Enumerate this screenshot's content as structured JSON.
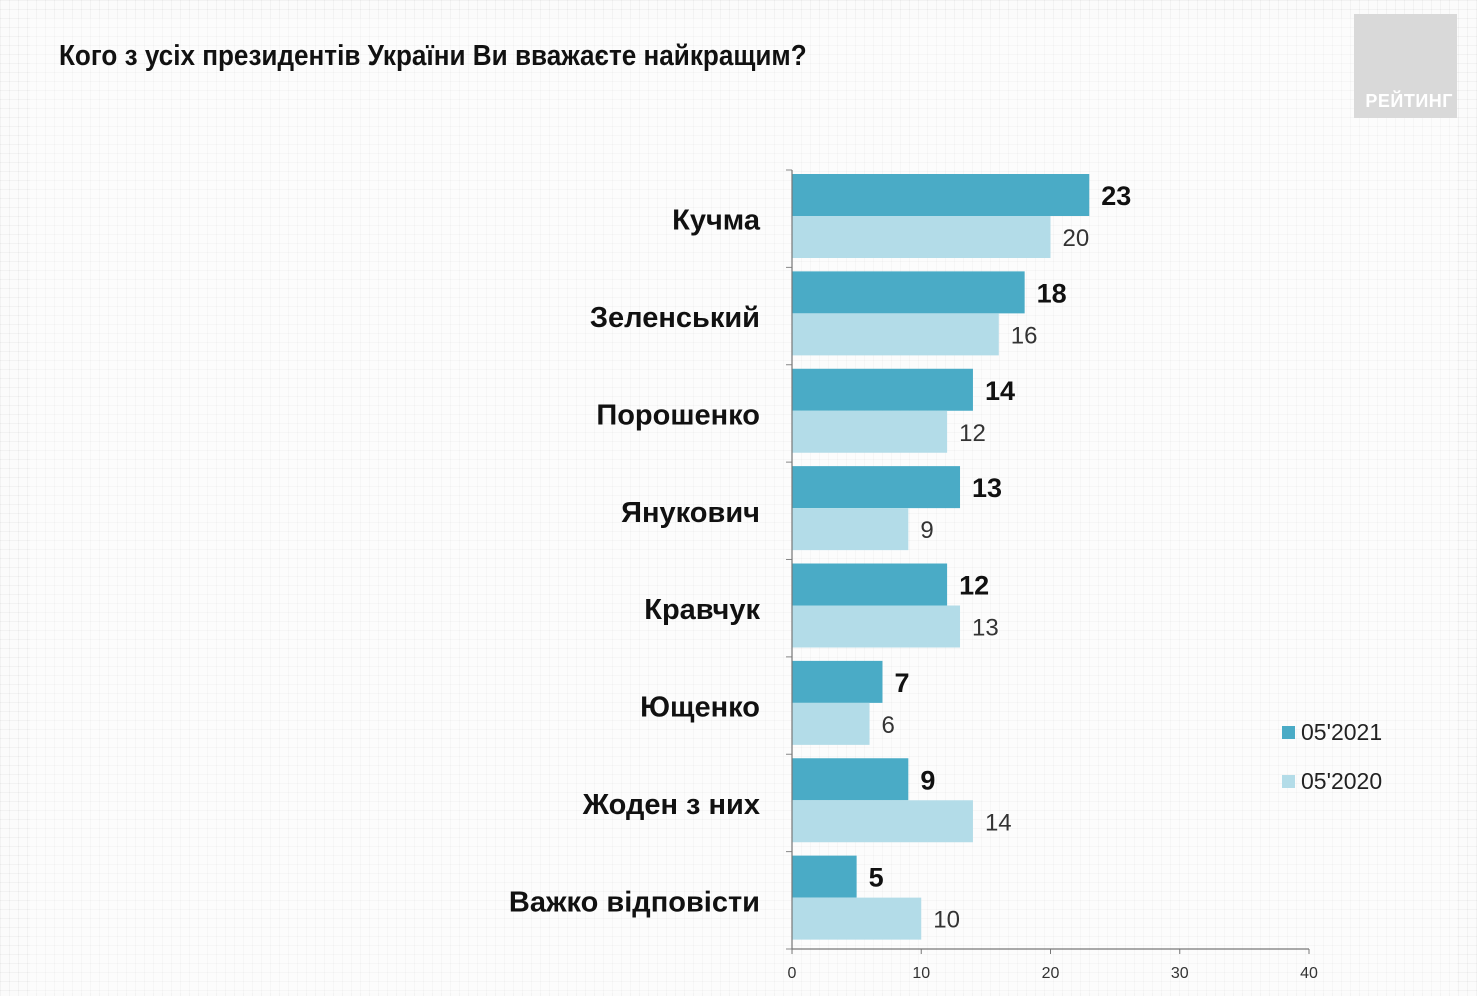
{
  "title": "Кого з усіх президентів України Ви вважаєте найкращим?",
  "logo_text": "РЕЙТИНГ",
  "legend": [
    {
      "label": "05'2021",
      "color": "#4aabc6"
    },
    {
      "label": "05'2020",
      "color": "#b3dce8"
    }
  ],
  "chart_data": {
    "type": "bar",
    "orientation": "horizontal",
    "categories": [
      "Кучма",
      "Зеленський",
      "Порошенко",
      "Янукович",
      "Кравчук",
      "Ющенко",
      "Жоден з них",
      "Важко відповісти"
    ],
    "series": [
      {
        "name": "05'2021",
        "values": [
          23,
          18,
          14,
          13,
          12,
          7,
          9,
          5
        ],
        "color": "#4aabc6"
      },
      {
        "name": "05'2020",
        "values": [
          20,
          16,
          12,
          9,
          13,
          6,
          14,
          10
        ],
        "color": "#b3dce8"
      }
    ],
    "xlim": [
      0,
      40
    ],
    "xticks": [
      0,
      10,
      20,
      30,
      40
    ],
    "grid": false,
    "legend_position": "right"
  }
}
